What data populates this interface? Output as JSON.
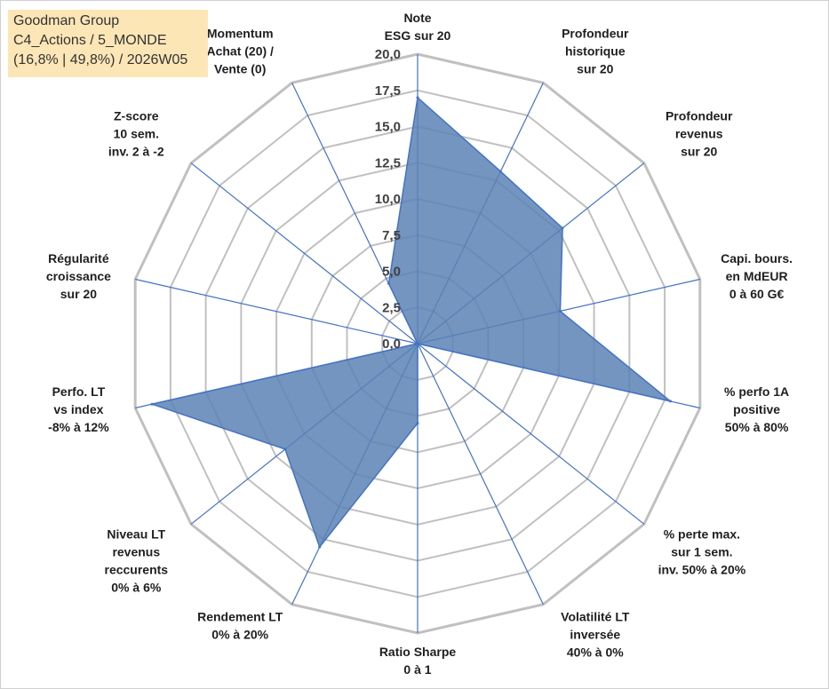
{
  "info": {
    "line1": "Goodman Group",
    "line2": "C4_Actions / 5_MONDE",
    "line3": "(16,8% | 49,8%) / 2026W05"
  },
  "colors": {
    "fill": "#5b82b4",
    "stroke": "#4472c4",
    "spoke": "#4472c4",
    "grid": "#c0c0c0"
  },
  "chart_data": {
    "type": "radar",
    "title": "",
    "rmax": 20,
    "ticks": [
      "0,0",
      "2,5",
      "5,0",
      "7,5",
      "10,0",
      "12,5",
      "15,0",
      "17,5",
      "20,0"
    ],
    "axes": [
      {
        "label": [
          "Note",
          "ESG sur 20"
        ],
        "value": 17
      },
      {
        "label": [
          "Profondeur",
          "historique",
          "sur 20"
        ],
        "value": 13.2
      },
      {
        "label": [
          "Profondeur",
          "revenus",
          "sur 20"
        ],
        "value": 12.8
      },
      {
        "label": [
          "Capi. bours.",
          "en MdEUR",
          "0 à 60 G€"
        ],
        "value": 10.1
      },
      {
        "label": [
          "% perfo 1A",
          "positive",
          "50% à 80%"
        ],
        "value": 17.9
      },
      {
        "label": [
          "% perte max.",
          "sur 1 sem.",
          "inv. 50% à 20%"
        ],
        "value": 0
      },
      {
        "label": [
          "Volatilité LT",
          "inversée",
          "40% à 0%"
        ],
        "value": 0
      },
      {
        "label": [
          "Ratio Sharpe",
          "0 à 1"
        ],
        "value": 5.5
      },
      {
        "label": [
          "Rendement LT",
          "0% à 20%"
        ],
        "value": 15.6
      },
      {
        "label": [
          "Niveau LT",
          "revenus",
          "reccurents",
          "0% à 6%"
        ],
        "value": 11.7
      },
      {
        "label": [
          "Perfo. LT",
          "vs index",
          "-8% à 12%"
        ],
        "value": 18.8
      },
      {
        "label": [
          "Régularité",
          "croissance",
          "sur 20"
        ],
        "value": 0
      },
      {
        "label": [
          "Z-score",
          "10 sem.",
          "inv. 2 à -2"
        ],
        "value": 0
      },
      {
        "label": [
          "Momentum",
          "Achat (20) /",
          "Vente (0)"
        ],
        "value": 4.6
      }
    ]
  }
}
